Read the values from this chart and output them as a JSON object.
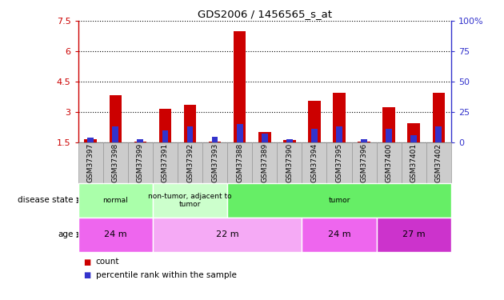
{
  "title": "GDS2006 / 1456565_s_at",
  "samples": [
    "GSM37397",
    "GSM37398",
    "GSM37399",
    "GSM37391",
    "GSM37392",
    "GSM37393",
    "GSM37388",
    "GSM37389",
    "GSM37390",
    "GSM37394",
    "GSM37395",
    "GSM37396",
    "GSM37400",
    "GSM37401",
    "GSM37402"
  ],
  "count_values": [
    1.68,
    3.85,
    1.55,
    3.15,
    3.35,
    1.55,
    7.0,
    2.0,
    1.63,
    3.55,
    3.95,
    1.55,
    3.25,
    2.45,
    3.95
  ],
  "percentile_values": [
    4,
    13,
    3,
    10,
    13,
    5,
    15,
    7,
    3,
    11,
    13,
    3,
    11,
    6,
    13
  ],
  "ylim_left": [
    1.5,
    7.5
  ],
  "ylim_right": [
    0,
    100
  ],
  "yticks_left": [
    1.5,
    3.0,
    4.5,
    6.0,
    7.5
  ],
  "yticks_left_labels": [
    "1.5",
    "3",
    "4.5",
    "6",
    "7.5"
  ],
  "yticks_right": [
    0,
    25,
    50,
    75,
    100
  ],
  "yticks_right_labels": [
    "0",
    "25",
    "50",
    "75",
    "100%"
  ],
  "bar_bottom": 1.5,
  "count_color": "#cc0000",
  "percentile_color": "#3333cc",
  "grid_color": "#000000",
  "disease_state_groups": [
    {
      "label": "normal",
      "start": 0,
      "end": 3,
      "color": "#aaffaa"
    },
    {
      "label": "non-tumor, adjacent to\ntumor",
      "start": 3,
      "end": 6,
      "color": "#ccffcc"
    },
    {
      "label": "tumor",
      "start": 6,
      "end": 15,
      "color": "#66ee66"
    }
  ],
  "age_groups": [
    {
      "label": "24 m",
      "start": 0,
      "end": 3,
      "color": "#ee66ee"
    },
    {
      "label": "22 m",
      "start": 3,
      "end": 9,
      "color": "#f5aaf5"
    },
    {
      "label": "24 m",
      "start": 9,
      "end": 12,
      "color": "#ee66ee"
    },
    {
      "label": "27 m",
      "start": 12,
      "end": 15,
      "color": "#cc33cc"
    }
  ],
  "tick_label_color": "#333333",
  "left_axis_color": "#cc0000",
  "right_axis_color": "#3333cc",
  "bar_width": 0.5,
  "percentile_bar_width": 0.25,
  "sample_box_color": "#cccccc",
  "sample_box_edge": "#999999"
}
